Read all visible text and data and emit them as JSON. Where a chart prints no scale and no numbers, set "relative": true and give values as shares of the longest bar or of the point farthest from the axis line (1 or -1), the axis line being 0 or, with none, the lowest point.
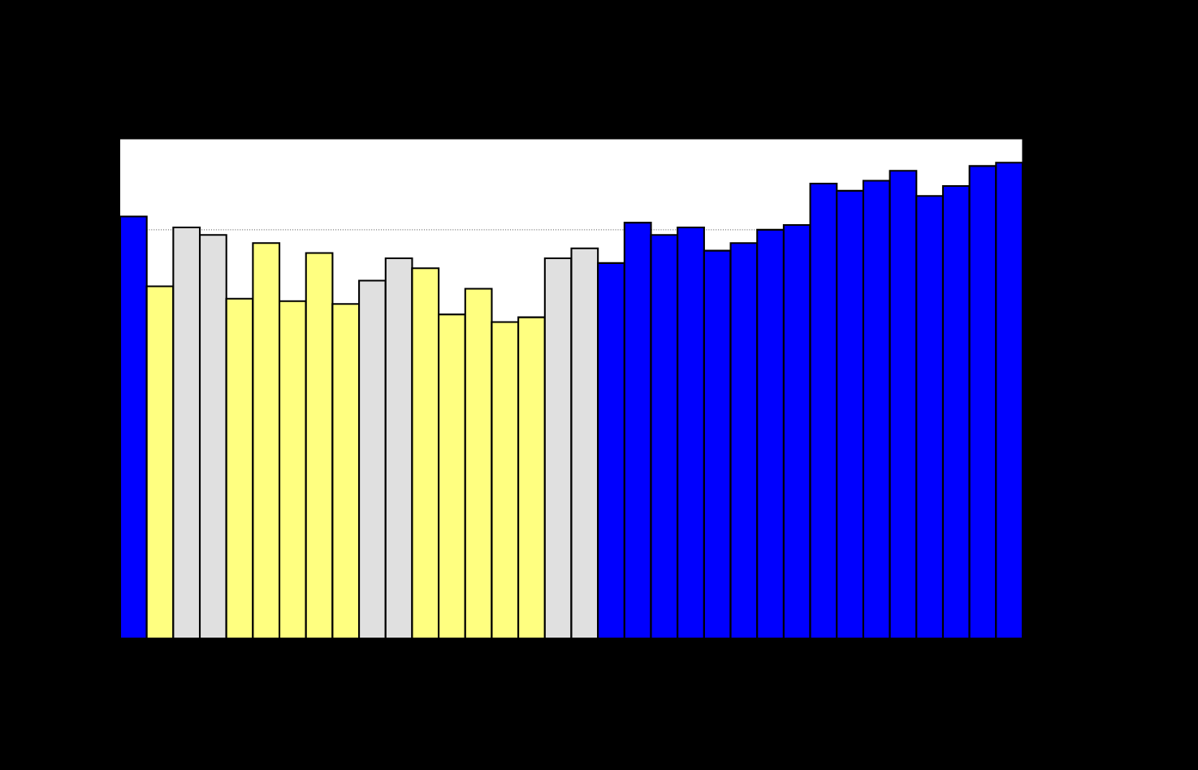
{
  "chart_data": {
    "type": "bar",
    "relative": true,
    "categories": [
      null,
      null,
      null,
      null,
      null,
      null,
      null,
      null,
      null,
      null,
      null,
      null,
      null,
      null,
      null,
      null,
      null,
      null,
      null,
      null,
      null,
      null,
      null,
      null,
      null,
      null,
      null,
      null,
      null,
      null,
      null,
      null,
      null,
      null
    ],
    "values": [
      0.887,
      0.74,
      0.864,
      0.848,
      0.714,
      0.831,
      0.709,
      0.81,
      0.703,
      0.752,
      0.799,
      0.778,
      0.681,
      0.735,
      0.665,
      0.675,
      0.799,
      0.82,
      0.789,
      0.874,
      0.848,
      0.864,
      0.815,
      0.831,
      0.859,
      0.869,
      0.956,
      0.941,
      0.962,
      0.983,
      0.93,
      0.951,
      0.993,
      1.0
    ],
    "colors": [
      "#0000ff",
      "#ffff80",
      "#e0e0e0",
      "#e0e0e0",
      "#ffff80",
      "#ffff80",
      "#ffff80",
      "#ffff80",
      "#ffff80",
      "#e0e0e0",
      "#e0e0e0",
      "#ffff80",
      "#ffff80",
      "#ffff80",
      "#ffff80",
      "#ffff80",
      "#e0e0e0",
      "#e0e0e0",
      "#0000ff",
      "#0000ff",
      "#0000ff",
      "#0000ff",
      "#0000ff",
      "#0000ff",
      "#0000ff",
      "#0000ff",
      "#0000ff",
      "#0000ff",
      "#0000ff",
      "#0000ff",
      "#0000ff",
      "#0000ff",
      "#0000ff",
      "#0000ff"
    ],
    "ref_lines": [
      {
        "axis": "y",
        "value": 0.859,
        "color": "#808080",
        "line_style": "dotted"
      }
    ],
    "grid": false
  }
}
